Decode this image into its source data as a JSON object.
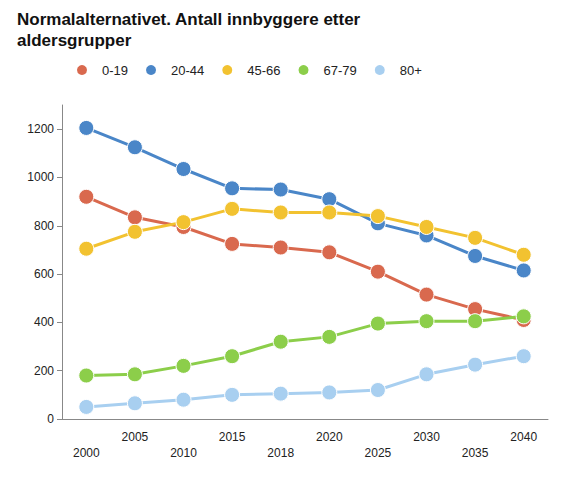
{
  "chart_data": {
    "type": "line",
    "title": "Normalalternativet. Antall innbyggere etter aldersgrupper",
    "categories": [
      "2000",
      "2005",
      "2010",
      "2015",
      "2018",
      "2020",
      "2025",
      "2030",
      "2035",
      "2040"
    ],
    "series": [
      {
        "name": "0-19",
        "color": "#d9694e",
        "values": [
          920,
          835,
          795,
          725,
          710,
          690,
          610,
          515,
          455,
          410
        ]
      },
      {
        "name": "20-44",
        "color": "#4a86c8",
        "values": [
          1205,
          1125,
          1035,
          955,
          950,
          910,
          810,
          760,
          675,
          615
        ]
      },
      {
        "name": "45-66",
        "color": "#f2c230",
        "values": [
          705,
          775,
          815,
          870,
          855,
          855,
          840,
          795,
          750,
          680
        ]
      },
      {
        "name": "67-79",
        "color": "#8cce4a",
        "values": [
          180,
          185,
          220,
          260,
          320,
          340,
          395,
          405,
          405,
          425
        ]
      },
      {
        "name": "80+",
        "color": "#a8cff0",
        "values": [
          50,
          65,
          80,
          100,
          105,
          110,
          120,
          185,
          225,
          260
        ]
      }
    ],
    "ylim": [
      0,
      1300
    ],
    "yticks": [
      0,
      200,
      400,
      600,
      800,
      1000,
      1200
    ],
    "grid": false,
    "legend": "top",
    "marker": "circle"
  }
}
